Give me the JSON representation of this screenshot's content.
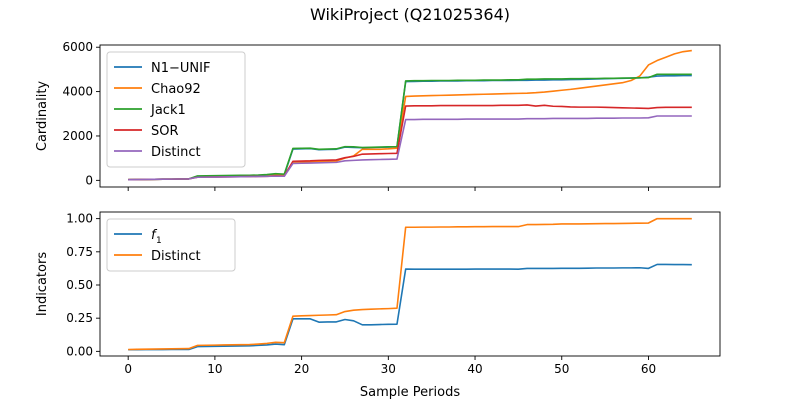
{
  "figure": {
    "title": "WikiProject (Q21025364)",
    "xlabel": "Sample Periods"
  },
  "colors": {
    "blue": "#1f77b4",
    "orange": "#ff7f0e",
    "green": "#2ca02c",
    "red": "#d62728",
    "purple": "#9467bd"
  },
  "chart_data": [
    {
      "type": "line",
      "title": "WikiProject (Q21025364)",
      "xlabel": "",
      "ylabel": "Cardinality",
      "xlim": [
        -3.25,
        68.25
      ],
      "ylim": [
        -300,
        6100
      ],
      "xticks": [
        0,
        10,
        20,
        30,
        40,
        50,
        60
      ],
      "yticks": [
        0,
        2000,
        4000,
        6000
      ],
      "ytick_labels": [
        "0",
        "2000",
        "4000",
        "6000"
      ],
      "show_x_tick_labels": false,
      "grid": false,
      "legend_position": "upper-left",
      "x": [
        0,
        1,
        2,
        3,
        4,
        5,
        6,
        7,
        8,
        9,
        10,
        11,
        12,
        13,
        14,
        15,
        16,
        17,
        18,
        19,
        20,
        21,
        22,
        23,
        24,
        25,
        26,
        27,
        28,
        29,
        30,
        31,
        32,
        33,
        34,
        35,
        36,
        37,
        38,
        39,
        40,
        41,
        42,
        43,
        44,
        45,
        46,
        47,
        48,
        49,
        50,
        51,
        52,
        53,
        54,
        55,
        56,
        57,
        58,
        59,
        60,
        61,
        62,
        63,
        64,
        65
      ],
      "series": [
        {
          "name": "N1−UNIF",
          "color": "#1f77b4",
          "values": [
            30,
            35,
            40,
            45,
            50,
            55,
            60,
            65,
            180,
            185,
            190,
            195,
            200,
            205,
            210,
            220,
            230,
            250,
            240,
            1410,
            1420,
            1430,
            1380,
            1390,
            1400,
            1500,
            1480,
            1470,
            1480,
            1490,
            1500,
            1510,
            4450,
            4460,
            4470,
            4470,
            4480,
            4480,
            4480,
            4490,
            4490,
            4490,
            4500,
            4500,
            4500,
            4510,
            4510,
            4520,
            4520,
            4530,
            4530,
            4540,
            4550,
            4560,
            4570,
            4580,
            4590,
            4600,
            4610,
            4620,
            4650,
            4700,
            4710,
            4710,
            4720,
            4720
          ]
        },
        {
          "name": "Chao92",
          "color": "#ff7f0e",
          "values": [
            30,
            35,
            40,
            45,
            50,
            55,
            60,
            65,
            160,
            165,
            170,
            175,
            180,
            185,
            190,
            200,
            210,
            230,
            220,
            820,
            830,
            840,
            850,
            860,
            870,
            1000,
            1100,
            1400,
            1400,
            1400,
            1420,
            1450,
            3780,
            3800,
            3810,
            3820,
            3830,
            3840,
            3850,
            3860,
            3870,
            3880,
            3890,
            3900,
            3910,
            3920,
            3930,
            3950,
            3980,
            4020,
            4060,
            4100,
            4150,
            4200,
            4250,
            4300,
            4350,
            4400,
            4500,
            4700,
            5200,
            5400,
            5550,
            5700,
            5800,
            5850
          ]
        },
        {
          "name": "Jack1",
          "color": "#2ca02c",
          "values": [
            30,
            35,
            40,
            45,
            50,
            55,
            60,
            65,
            200,
            205,
            210,
            215,
            220,
            225,
            230,
            240,
            260,
            300,
            280,
            1440,
            1445,
            1450,
            1400,
            1410,
            1420,
            1520,
            1510,
            1480,
            1490,
            1500,
            1510,
            1520,
            4480,
            4490,
            4490,
            4500,
            4500,
            4500,
            4510,
            4510,
            4510,
            4520,
            4520,
            4520,
            4530,
            4530,
            4560,
            4560,
            4570,
            4570,
            4570,
            4580,
            4580,
            4590,
            4590,
            4600,
            4600,
            4610,
            4610,
            4620,
            4630,
            4780,
            4780,
            4780,
            4780,
            4780
          ]
        },
        {
          "name": "SOR",
          "color": "#d62728",
          "values": [
            30,
            35,
            40,
            45,
            50,
            55,
            60,
            65,
            140,
            145,
            150,
            155,
            160,
            165,
            170,
            175,
            180,
            200,
            190,
            860,
            870,
            880,
            900,
            910,
            920,
            1020,
            1080,
            1180,
            1190,
            1200,
            1210,
            1220,
            3350,
            3360,
            3360,
            3360,
            3370,
            3370,
            3370,
            3370,
            3370,
            3370,
            3370,
            3380,
            3380,
            3380,
            3400,
            3350,
            3380,
            3340,
            3330,
            3310,
            3300,
            3300,
            3300,
            3290,
            3280,
            3270,
            3260,
            3250,
            3240,
            3280,
            3290,
            3290,
            3290,
            3290
          ]
        },
        {
          "name": "Distinct",
          "color": "#9467bd",
          "values": [
            30,
            35,
            40,
            45,
            50,
            55,
            60,
            65,
            140,
            145,
            150,
            155,
            160,
            165,
            170,
            175,
            180,
            190,
            185,
            760,
            770,
            780,
            790,
            800,
            810,
            880,
            900,
            920,
            930,
            940,
            950,
            960,
            2740,
            2740,
            2750,
            2750,
            2750,
            2750,
            2750,
            2760,
            2760,
            2760,
            2760,
            2760,
            2760,
            2760,
            2780,
            2780,
            2780,
            2790,
            2790,
            2790,
            2790,
            2790,
            2800,
            2800,
            2800,
            2810,
            2810,
            2810,
            2820,
            2900,
            2900,
            2900,
            2900,
            2900
          ]
        }
      ]
    },
    {
      "type": "line",
      "title": "",
      "xlabel": "Sample Periods",
      "ylabel": "Indicators",
      "xlim": [
        -3.25,
        68.25
      ],
      "ylim": [
        -0.035,
        1.05
      ],
      "xticks": [
        0,
        10,
        20,
        30,
        40,
        50,
        60
      ],
      "xtick_labels": [
        "0",
        "10",
        "20",
        "30",
        "40",
        "50",
        "60"
      ],
      "yticks": [
        0,
        0.25,
        0.5,
        0.75,
        1.0
      ],
      "ytick_labels": [
        "0.00",
        "0.25",
        "0.50",
        "0.75",
        "1.00"
      ],
      "show_x_tick_labels": true,
      "grid": false,
      "legend_position": "upper-left",
      "x": [
        0,
        1,
        2,
        3,
        4,
        5,
        6,
        7,
        8,
        9,
        10,
        11,
        12,
        13,
        14,
        15,
        16,
        17,
        18,
        19,
        20,
        21,
        22,
        23,
        24,
        25,
        26,
        27,
        28,
        29,
        30,
        31,
        32,
        33,
        34,
        35,
        36,
        37,
        38,
        39,
        40,
        41,
        42,
        43,
        44,
        45,
        46,
        47,
        48,
        49,
        50,
        51,
        52,
        53,
        54,
        55,
        56,
        57,
        58,
        59,
        60,
        61,
        62,
        63,
        64,
        65
      ],
      "series": [
        {
          "name": "f1",
          "label_main": "f",
          "label_sub": "1",
          "color": "#1f77b4",
          "values": [
            0.012,
            0.012,
            0.013,
            0.013,
            0.013,
            0.014,
            0.014,
            0.014,
            0.036,
            0.037,
            0.038,
            0.039,
            0.04,
            0.041,
            0.042,
            0.045,
            0.048,
            0.055,
            0.05,
            0.245,
            0.245,
            0.245,
            0.22,
            0.222,
            0.222,
            0.24,
            0.23,
            0.2,
            0.2,
            0.202,
            0.204,
            0.205,
            0.62,
            0.619,
            0.619,
            0.619,
            0.619,
            0.619,
            0.619,
            0.619,
            0.62,
            0.62,
            0.62,
            0.62,
            0.62,
            0.619,
            0.625,
            0.625,
            0.625,
            0.625,
            0.626,
            0.626,
            0.626,
            0.627,
            0.628,
            0.628,
            0.628,
            0.629,
            0.629,
            0.63,
            0.625,
            0.655,
            0.655,
            0.654,
            0.654,
            0.653
          ]
        },
        {
          "name": "Distinct",
          "color": "#ff7f0e",
          "values": [
            0.014,
            0.015,
            0.016,
            0.017,
            0.018,
            0.019,
            0.02,
            0.021,
            0.045,
            0.046,
            0.047,
            0.048,
            0.049,
            0.05,
            0.051,
            0.055,
            0.06,
            0.068,
            0.065,
            0.265,
            0.268,
            0.27,
            0.272,
            0.274,
            0.276,
            0.3,
            0.31,
            0.315,
            0.318,
            0.32,
            0.322,
            0.325,
            0.935,
            0.935,
            0.936,
            0.936,
            0.937,
            0.937,
            0.938,
            0.938,
            0.939,
            0.939,
            0.94,
            0.94,
            0.94,
            0.94,
            0.955,
            0.955,
            0.956,
            0.957,
            0.96,
            0.96,
            0.96,
            0.961,
            0.962,
            0.963,
            0.963,
            0.964,
            0.965,
            0.966,
            0.967,
            1.0,
            1.0,
            1.0,
            1.0,
            1.0
          ]
        }
      ]
    }
  ]
}
